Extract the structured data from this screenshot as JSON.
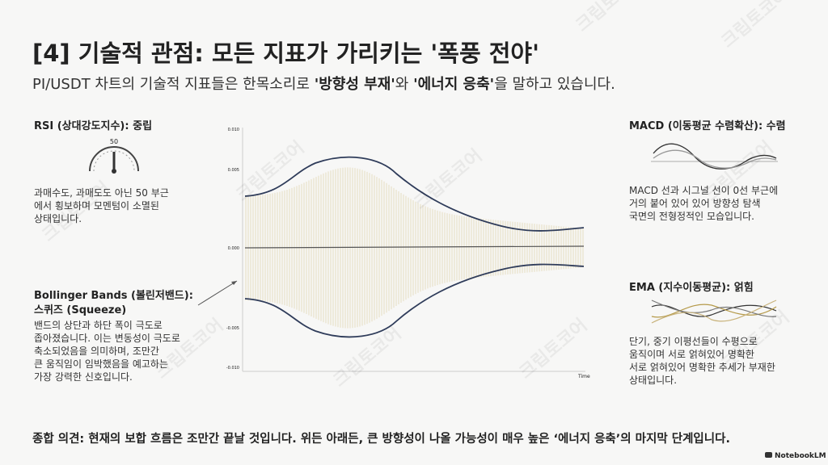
{
  "header": {
    "title": "[4] 기술적 관점: 모든 지표가 가리키는 '폭풍 전야'",
    "subtitle": [
      "PI/USDT 차트의 기술적 지표들은 한목소리로 ",
      "'방향성 부재'",
      "와 ",
      "'에너지 응축'",
      "을 말하고 있습니다."
    ]
  },
  "rsi": {
    "title": "RSI (상대강도지수): 중립",
    "gauge_label": "50",
    "body": [
      "과매수도, 과매도도 아닌 50 부근",
      "에서 횡보하며 모멘텀이 소멸된",
      "상태입니다."
    ]
  },
  "bollinger": {
    "title": [
      "Bollinger Bands (볼린저밴드):",
      "스퀴즈 (Squeeze)"
    ],
    "body": [
      "밴드의 상단과 하단 폭이 극도로",
      "좁아졌습니다. 이는 변동성이 극도로",
      "축소되었음을 의미하며, 조만간",
      "큰 움직임이 임박했음을 예고하는",
      "가장 강력한 신호입니다."
    ]
  },
  "macd": {
    "title": "MACD (이동평균 수렴확산): 수렴",
    "body": [
      "MACD 선과 시그널 선이 0선 부근에",
      "거의 붙어 있어 있어 방향성 탐색",
      "국면의 전형정적인 모습입니다."
    ]
  },
  "ema": {
    "title": "EMA (지수이동평균): 얽힘",
    "body": [
      "단기, 중기 이평선들이 수평으로",
      "움직이며 서로 얽혀있어 명확한",
      "서로 얽혀있어 명확한 추세가 부재한",
      "상태입니다."
    ]
  },
  "chart": {
    "y_labels": [
      "0.010",
      "0.005",
      "0.000",
      "-0.005",
      "-0.010"
    ],
    "x_label": "Time"
  },
  "summary": "종합 의견: 현재의 보합 흐름은 조만간 끝날 것입니다. 위든 아래든, 큰 방향성이 나올 가능성이 매우 높은 ‘에너지 응축’의 마지막 단계입니다.",
  "watermark": "크립토코어",
  "logo": "NotebookLM"
}
